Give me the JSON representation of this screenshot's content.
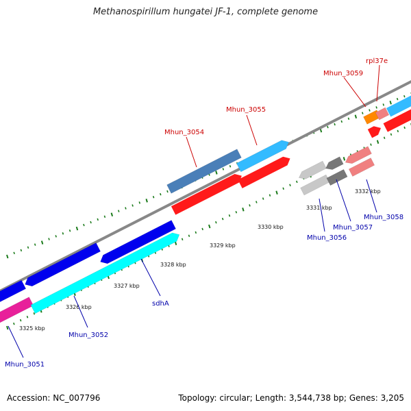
{
  "title": "Methanospirillum hungatei JF-1, complete genome",
  "footer": {
    "accession": "Accession: NC_007796",
    "summary": "Topology: circular; Length: 3,544,738 bp; Genes: 3,205"
  },
  "colors": {
    "backbone": "#888888",
    "tick_green": "#1a7a1a",
    "label_red": "#cc0000",
    "label_blue": "#0000aa"
  },
  "ticks": [
    {
      "label": "3325 kbp"
    },
    {
      "label": "3326 kbp"
    },
    {
      "label": "3327 kbp"
    },
    {
      "label": "3328 kbp"
    },
    {
      "label": "3329 kbp"
    },
    {
      "label": "3330 kbp"
    },
    {
      "label": "3331 kbp"
    },
    {
      "label": "3332 kbp"
    }
  ],
  "genes": [
    {
      "name": "Mhun_3051",
      "color": "#e8209a",
      "label_color": "#0000aa"
    },
    {
      "name": "Mhun_3052",
      "color": "#00ffff",
      "label_color": "#0000aa"
    },
    {
      "name": "sdhA",
      "color": "#0000ee",
      "label_color": "#0000aa"
    },
    {
      "name": "Mhun_3054",
      "color": "#4a7fb8",
      "label_color": "#cc0000"
    },
    {
      "name": "Mhun_3055",
      "color": "#33bbff",
      "label_color": "#cc0000"
    },
    {
      "name": "Mhun_3056",
      "color": "#c8c8c8",
      "label_color": "#0000aa"
    },
    {
      "name": "Mhun_3057",
      "color": "#777777",
      "label_color": "#0000aa"
    },
    {
      "name": "Mhun_3058",
      "color": "#f08080",
      "label_color": "#0000aa"
    },
    {
      "name": "Mhun_3059",
      "color": "#ff8800",
      "label_color": "#cc0000"
    },
    {
      "name": "rpl37e",
      "color": "#f08080",
      "label_color": "#cc0000"
    }
  ]
}
